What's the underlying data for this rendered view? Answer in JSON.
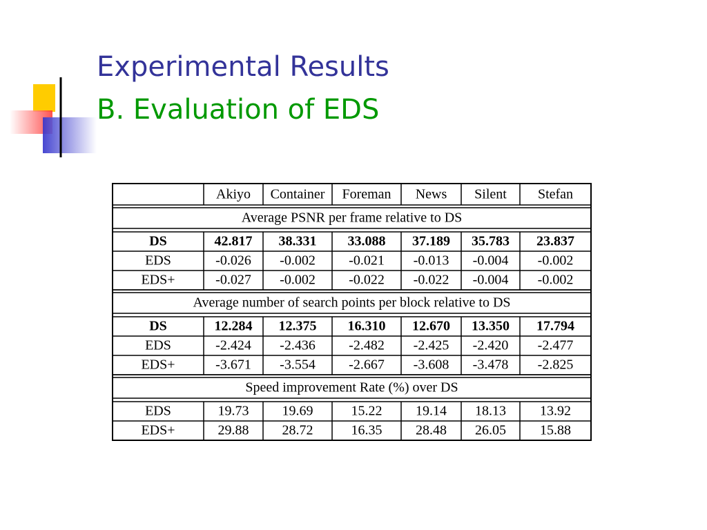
{
  "header": {
    "title": "Experimental Results",
    "subtitle": "B. Evaluation of EDS"
  },
  "table": {
    "columns": [
      "Akiyo",
      "Container",
      "Foreman",
      "News",
      "Silent",
      "Stefan"
    ],
    "sections": [
      {
        "caption": "Average PSNR per frame relative to DS",
        "rows": [
          {
            "label": "DS",
            "bold": true,
            "values": [
              "42.817",
              "38.331",
              "33.088",
              "37.189",
              "35.783",
              "23.837"
            ]
          },
          {
            "label": "EDS",
            "values": [
              "-0.026",
              "-0.002",
              "-0.021",
              "-0.013",
              "-0.004",
              "-0.002"
            ]
          },
          {
            "label": "EDS+",
            "values": [
              "-0.027",
              "-0.002",
              "-0.022",
              "-0.022",
              "-0.004",
              "-0.002"
            ]
          }
        ]
      },
      {
        "caption": "Average number of search points per block relative to DS",
        "rows": [
          {
            "label": "DS",
            "bold": true,
            "values": [
              "12.284",
              "12.375",
              "16.310",
              "12.670",
              "13.350",
              "17.794"
            ]
          },
          {
            "label": "EDS",
            "values": [
              "-2.424",
              "-2.436",
              "-2.482",
              "-2.425",
              "-2.420",
              "-2.477"
            ]
          },
          {
            "label": "EDS+",
            "values": [
              "-3.671",
              "-3.554",
              "-2.667",
              "-3.608",
              "-3.478",
              "-2.825"
            ]
          }
        ]
      },
      {
        "caption": "Speed improvement Rate (%) over DS",
        "rows": [
          {
            "label": "EDS",
            "values": [
              "19.73",
              "19.69",
              "15.22",
              "19.14",
              "18.13",
              "13.92"
            ]
          },
          {
            "label": "EDS+",
            "values": [
              "29.88",
              "28.72",
              "16.35",
              "28.48",
              "26.05",
              "15.88"
            ]
          }
        ]
      }
    ]
  }
}
